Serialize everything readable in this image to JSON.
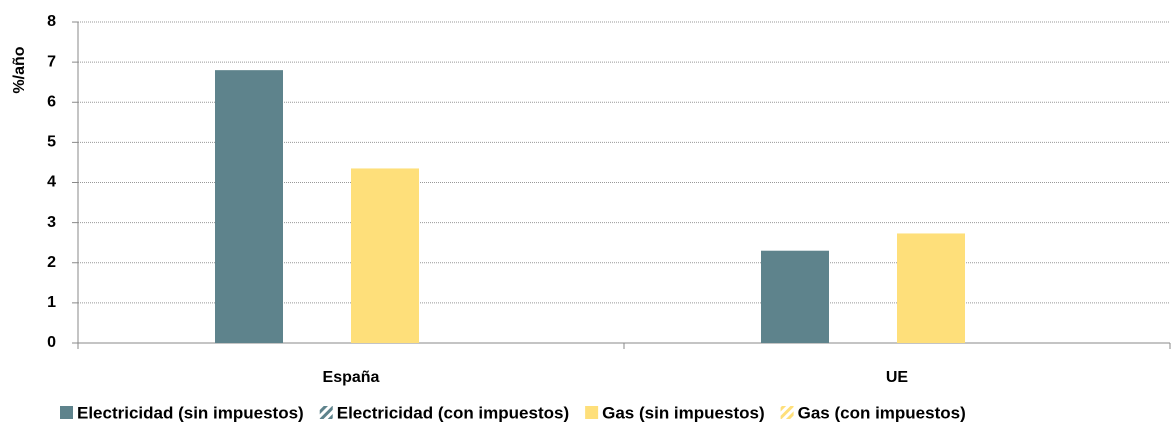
{
  "chart_data": {
    "type": "bar",
    "ylabel": "%/año",
    "categories": [
      "España",
      "UE"
    ],
    "series": [
      {
        "name": "Electricidad (sin impuestos)",
        "color": "#5e838c",
        "values": [
          6.8,
          2.3
        ]
      },
      {
        "name": "Electricidad (con impuestos)",
        "color": "#5e838c",
        "hatch": true,
        "values": [
          null,
          null
        ]
      },
      {
        "name": "Gas (sin impuestos)",
        "color": "#fedf7a",
        "values": [
          4.35,
          2.73
        ]
      },
      {
        "name": "Gas (con impuestos)",
        "color": "#fedf7a",
        "hatch": true,
        "values": [
          null,
          null
        ]
      }
    ],
    "ylim": [
      0,
      8
    ],
    "yticks": [
      0,
      1,
      2,
      3,
      4,
      5,
      6,
      7,
      8
    ],
    "grid": true
  }
}
